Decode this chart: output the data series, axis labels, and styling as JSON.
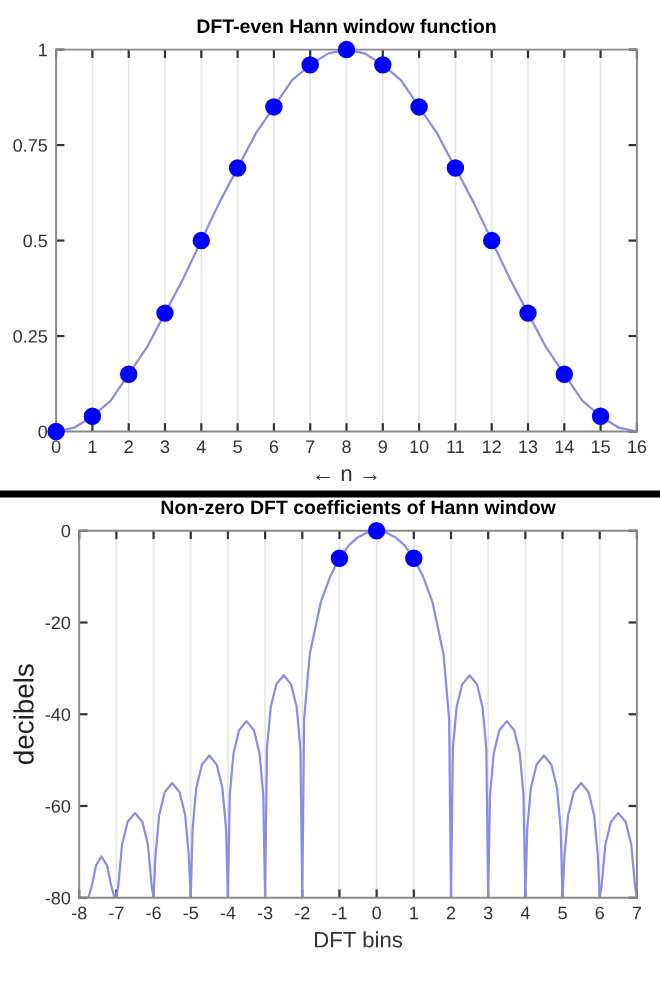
{
  "chart_data": [
    {
      "type": "line",
      "title": "DFT-even Hann window function",
      "xlabel": "← n →",
      "xlim": [
        0,
        16
      ],
      "xticks": [
        0,
        1,
        2,
        3,
        4,
        5,
        6,
        7,
        8,
        9,
        10,
        11,
        12,
        13,
        14,
        15,
        16
      ],
      "ylim": [
        0,
        1
      ],
      "yticks": [
        0,
        0.25,
        0.5,
        0.75,
        1
      ],
      "grid": "x",
      "series": [
        {
          "color": "#8c8ce6",
          "marker": "none",
          "x": [
            0,
            0.5,
            1,
            1.5,
            2,
            2.5,
            3,
            3.5,
            4,
            4.5,
            5,
            5.5,
            6,
            6.5,
            7,
            7.5,
            8,
            8.5,
            9,
            9.5,
            10,
            10.5,
            11,
            11.5,
            12,
            12.5,
            13,
            13.5,
            14,
            14.5,
            15,
            15.5,
            16
          ],
          "values": [
            0,
            0.01,
            0.04,
            0.08,
            0.15,
            0.22,
            0.31,
            0.4,
            0.5,
            0.6,
            0.69,
            0.78,
            0.85,
            0.92,
            0.96,
            0.99,
            1,
            0.99,
            0.96,
            0.92,
            0.85,
            0.78,
            0.69,
            0.6,
            0.5,
            0.4,
            0.31,
            0.22,
            0.15,
            0.08,
            0.04,
            0.01,
            0
          ]
        },
        {
          "type": "scatter",
          "color": "#0000ff",
          "marker": "circle",
          "x": [
            0,
            1,
            2,
            3,
            4,
            5,
            6,
            7,
            8,
            9,
            10,
            11,
            12,
            13,
            14,
            15
          ],
          "values": [
            0,
            0.04,
            0.15,
            0.31,
            0.5,
            0.69,
            0.85,
            0.96,
            1,
            0.96,
            0.85,
            0.69,
            0.5,
            0.31,
            0.15,
            0.04
          ]
        }
      ]
    },
    {
      "type": "line",
      "title": "Non-zero DFT coefficients of Hann window",
      "xlabel": "DFT bins",
      "ylabel": "decibels",
      "xlim": [
        -8,
        7
      ],
      "xticks": [
        -8,
        -7,
        -6,
        -5,
        -4,
        -3,
        -2,
        -1,
        0,
        1,
        2,
        3,
        4,
        5,
        6,
        7
      ],
      "ylim": [
        -80,
        0
      ],
      "yticks": [
        -80,
        -60,
        -40,
        -20,
        0
      ],
      "grid": "x",
      "series": [
        {
          "color": "#8c8ce6",
          "marker": "none",
          "x": [
            -7.75,
            -7.65,
            -7.55,
            -7.4,
            -7.25,
            -7.15,
            -7.05,
            -7,
            -6.95,
            -6.85,
            -6.7,
            -6.5,
            -6.3,
            -6.15,
            -6.05,
            -6,
            -5.95,
            -5.85,
            -5.7,
            -5.5,
            -5.3,
            -5.15,
            -5.05,
            -5,
            -4.95,
            -4.85,
            -4.7,
            -4.5,
            -4.3,
            -4.15,
            -4.05,
            -4,
            -3.95,
            -3.85,
            -3.7,
            -3.5,
            -3.3,
            -3.15,
            -3.05,
            -3,
            -2.95,
            -2.85,
            -2.7,
            -2.5,
            -2.3,
            -2.15,
            -2.05,
            -2,
            -1.95,
            -1.8,
            -1.5,
            -1.25,
            -1,
            -0.75,
            -0.5,
            -0.25,
            0,
            0.25,
            0.5,
            0.75,
            1,
            1.25,
            1.5,
            1.8,
            1.95,
            2,
            2.05,
            2.15,
            2.3,
            2.5,
            2.7,
            2.85,
            2.95,
            3,
            3.05,
            3.15,
            3.3,
            3.5,
            3.7,
            3.85,
            3.95,
            4,
            4.05,
            4.15,
            4.3,
            4.5,
            4.7,
            4.85,
            4.95,
            5,
            5.05,
            5.15,
            5.3,
            5.5,
            5.7,
            5.85,
            5.95,
            6,
            6.05,
            6.15,
            6.3,
            6.5,
            6.7,
            6.85,
            6.95,
            7
          ],
          "values": [
            -80,
            -77,
            -73,
            -71,
            -73,
            -77,
            -80,
            -80,
            -77.5,
            -68.5,
            -63.5,
            -61.5,
            -63.5,
            -68.5,
            -77.5,
            -80,
            -71,
            -62,
            -57,
            -55,
            -57,
            -62,
            -71,
            -80,
            -65,
            -56,
            -51,
            -49,
            -51,
            -56,
            -65,
            -80,
            -57.5,
            -48.5,
            -43.5,
            -41.5,
            -43.5,
            -48.5,
            -57.5,
            -80,
            -47.5,
            -38.5,
            -33.5,
            -31.5,
            -33.5,
            -38.5,
            -47.5,
            -80,
            -41,
            -27,
            -15.5,
            -10,
            -6,
            -3.2,
            -1.4,
            -0.4,
            0,
            -0.4,
            -1.4,
            -3.2,
            -6,
            -10,
            -15.5,
            -27,
            -41,
            -80,
            -47.5,
            -38.5,
            -33.5,
            -31.5,
            -33.5,
            -38.5,
            -47.5,
            -80,
            -57.5,
            -48.5,
            -43.5,
            -41.5,
            -43.5,
            -48.5,
            -57.5,
            -80,
            -65,
            -56,
            -51,
            -49,
            -51,
            -56,
            -65,
            -80,
            -71,
            -62,
            -57,
            -55,
            -57,
            -62,
            -71,
            -80,
            -77.5,
            -68.5,
            -63.5,
            -61.5,
            -63.5,
            -68.5,
            -77.5,
            -80
          ]
        },
        {
          "type": "scatter",
          "color": "#0000ff",
          "marker": "circle",
          "x": [
            -1,
            0,
            1
          ],
          "values": [
            -6,
            0,
            -6
          ]
        }
      ]
    }
  ]
}
